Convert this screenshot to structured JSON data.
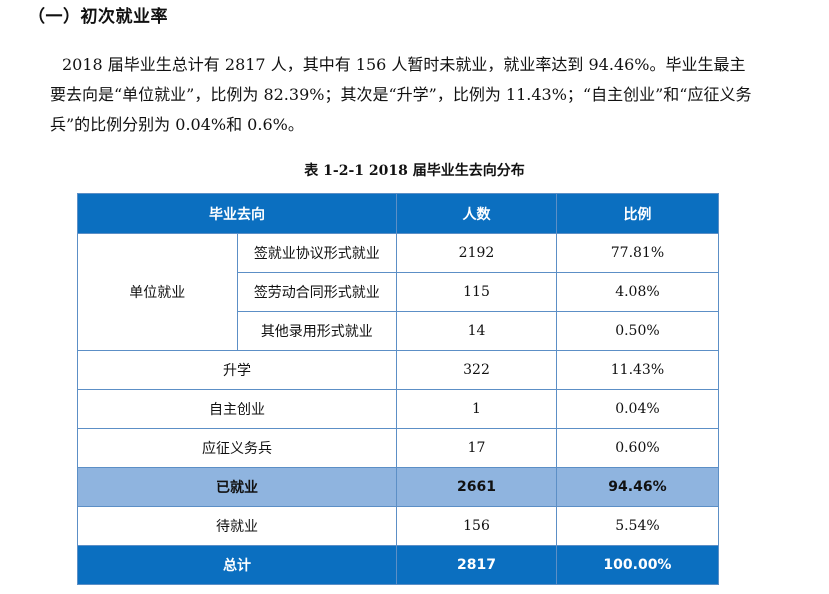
{
  "section_heading": "（一）初次就业率",
  "paragraph_lines": [
    "2018 届毕业生总计有 2817 人，其中有 156 人暂时未就业，就业率达到 94.46%。毕业生最主",
    "要去向是“单位就业”，比例为  82.39%；其次是“升学”，比例为 11.43%；“自主创业”和“应征义务",
    "兵”的比例分别为 0.04%和 0.6%。"
  ],
  "table_caption": "表 1-2-1   2018 届毕业生去向分布",
  "table": {
    "headers": [
      "毕业去向",
      "人数",
      "比例"
    ],
    "group_label": "单位就业",
    "group_rows": [
      {
        "label": "签就业协议形式就业",
        "count": "2192",
        "ratio": "77.81%"
      },
      {
        "label": "签劳动合同形式就业",
        "count": "115",
        "ratio": "4.08%"
      },
      {
        "label": "其他录用形式就业",
        "count": "14",
        "ratio": "0.50%"
      }
    ],
    "rows": [
      {
        "label": "升学",
        "count": "322",
        "ratio": "11.43%"
      },
      {
        "label": "自主创业",
        "count": "1",
        "ratio": "0.04%"
      },
      {
        "label": "应征义务兵",
        "count": "17",
        "ratio": "0.60%"
      }
    ],
    "employed": {
      "label": "已就业",
      "count": "2661",
      "ratio": "94.46%"
    },
    "unemployed": {
      "label": "待就业",
      "count": "156",
      "ratio": "5.54%"
    },
    "total": {
      "label": "总计",
      "count": "2817",
      "ratio": "100.00%"
    }
  }
}
